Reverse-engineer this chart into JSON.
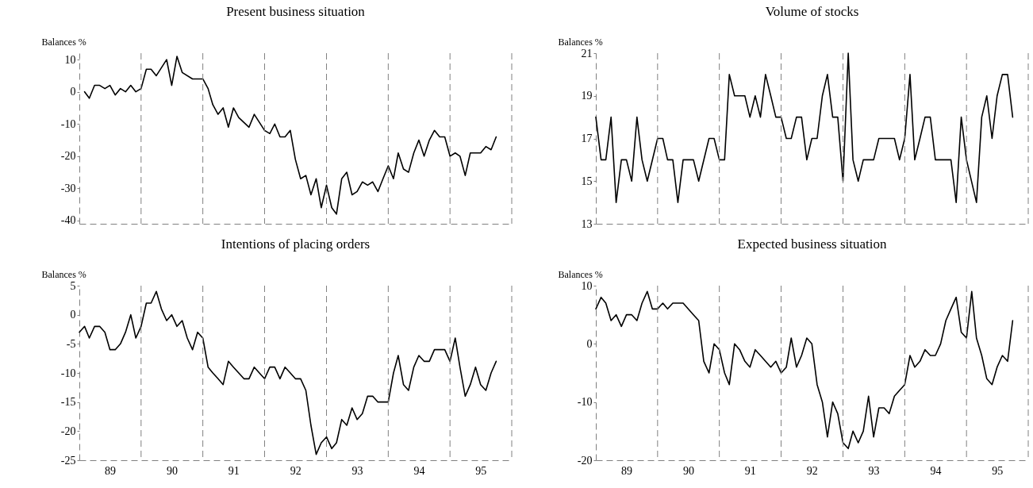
{
  "chart_data": [
    {
      "type": "line",
      "title": "Present business situation",
      "ylabel": "Balances %",
      "tick_labels": "y",
      "xlim": [
        "1989-01",
        "1996-01"
      ],
      "xticks": [
        {
          "value": "1989-07",
          "label": null
        },
        {
          "value": "1990-07",
          "label": null
        },
        {
          "value": "1991-07",
          "label": null
        },
        {
          "value": "1992-07",
          "label": null
        },
        {
          "value": "1993-07",
          "label": null
        },
        {
          "value": "1994-07",
          "label": null
        },
        {
          "value": "1995-07",
          "label": null
        }
      ],
      "ylim": [
        -41,
        12
      ],
      "yticks": [
        -40,
        -30,
        -20,
        -10,
        0,
        10
      ],
      "marker": "none",
      "line_style": "solid",
      "series": [
        {
          "color": "#000000",
          "x": [
            "1989-02",
            "1989-03",
            "1989-04",
            "1989-05",
            "1989-06",
            "1989-07",
            "1989-08",
            "1989-09",
            "1989-10",
            "1989-11",
            "1989-12",
            "1990-01",
            "1990-02",
            "1990-03",
            "1990-04",
            "1990-06",
            "1990-07",
            "1990-08",
            "1990-09",
            "1990-11",
            "1991-01",
            "1991-02",
            "1991-03",
            "1991-04",
            "1991-05",
            "1991-06",
            "1991-07",
            "1991-08",
            "1991-10",
            "1991-11",
            "1992-01",
            "1992-02",
            "1992-03",
            "1992-04",
            "1992-05",
            "1992-06",
            "1992-07",
            "1992-08",
            "1992-09",
            "1992-10",
            "1992-11",
            "1992-12",
            "1993-01",
            "1993-02",
            "1993-03",
            "1993-04",
            "1993-05",
            "1993-06",
            "1993-07",
            "1993-08",
            "1993-09",
            "1993-10",
            "1993-11",
            "1993-12",
            "1994-01",
            "1994-02",
            "1994-03",
            "1994-04",
            "1994-05",
            "1994-06",
            "1994-07",
            "1994-08",
            "1994-09",
            "1994-10",
            "1994-11",
            "1994-12",
            "1995-01",
            "1995-02",
            "1995-03",
            "1995-04",
            "1995-05",
            "1995-06",
            "1995-07",
            "1995-08",
            "1995-09",
            "1995-10"
          ],
          "values": [
            0,
            -2,
            2,
            2,
            1,
            2,
            -1,
            1,
            0,
            2,
            0,
            1,
            7,
            7,
            5,
            10,
            2,
            11,
            6,
            4,
            4,
            1,
            -4,
            -7,
            -5,
            -11,
            -5,
            -8,
            -11,
            -7,
            -12,
            -13,
            -10,
            -14,
            -14,
            -12,
            -21,
            -27,
            -26,
            -32,
            -27,
            -36,
            -29,
            -36,
            -38,
            -27,
            -25,
            -32,
            -31,
            -28,
            -29,
            -28,
            -31,
            -27,
            -23,
            -27,
            -19,
            -24,
            -25,
            -19,
            -15,
            -20,
            -15,
            -12,
            -14,
            -14,
            -20,
            -19,
            -20,
            -26,
            -19,
            -19,
            -19,
            -17,
            -18,
            -14
          ]
        }
      ],
      "ref_lines": [
        {
          "axis": "x",
          "value": "1990-01",
          "line_style": "dashed",
          "color": "#808080"
        },
        {
          "axis": "x",
          "value": "1991-01",
          "line_style": "dashed",
          "color": "#808080"
        },
        {
          "axis": "x",
          "value": "1992-01",
          "line_style": "dashed",
          "color": "#808080"
        },
        {
          "axis": "x",
          "value": "1993-01",
          "line_style": "dashed",
          "color": "#808080"
        },
        {
          "axis": "x",
          "value": "1994-01",
          "line_style": "dashed",
          "color": "#808080"
        },
        {
          "axis": "x",
          "value": "1995-01",
          "line_style": "dashed",
          "color": "#808080"
        },
        {
          "axis": "x",
          "value": "1996-01",
          "line_style": "dashed",
          "color": "#808080"
        }
      ]
    },
    {
      "type": "line",
      "title": "Volume of stocks",
      "ylabel": "Balances %",
      "tick_labels": "y",
      "xlim": [
        "1989-01",
        "1996-01"
      ],
      "xticks": [
        {
          "value": "1989-07",
          "label": null
        },
        {
          "value": "1990-07",
          "label": null
        },
        {
          "value": "1991-07",
          "label": null
        },
        {
          "value": "1992-07",
          "label": null
        },
        {
          "value": "1993-07",
          "label": null
        },
        {
          "value": "1994-07",
          "label": null
        },
        {
          "value": "1995-07",
          "label": null
        }
      ],
      "ylim": [
        13,
        21
      ],
      "yticks": [
        13,
        15,
        17,
        19,
        21
      ],
      "marker": "none",
      "line_style": "solid",
      "series": [
        {
          "color": "#000000",
          "x": [
            "1989-01",
            "1989-02",
            "1989-03",
            "1989-04",
            "1989-05",
            "1989-06",
            "1989-07",
            "1989-08",
            "1989-09",
            "1989-10",
            "1989-11",
            "1990-01",
            "1990-02",
            "1990-03",
            "1990-04",
            "1990-05",
            "1990-06",
            "1990-08",
            "1990-09",
            "1990-11",
            "1990-12",
            "1991-01",
            "1991-02",
            "1991-03",
            "1991-04",
            "1991-06",
            "1991-07",
            "1991-08",
            "1991-09",
            "1991-10",
            "1991-11",
            "1991-12",
            "1992-01",
            "1992-02",
            "1992-03",
            "1992-04",
            "1992-05",
            "1992-06",
            "1992-07",
            "1992-08",
            "1992-09",
            "1992-10",
            "1992-11",
            "1992-12",
            "1993-01",
            "1993-02",
            "1993-03",
            "1993-04",
            "1993-05",
            "1993-07",
            "1993-08",
            "1993-11",
            "1993-12",
            "1994-01",
            "1994-02",
            "1994-03",
            "1994-04",
            "1994-05",
            "1994-06",
            "1994-07",
            "1994-10",
            "1994-11",
            "1994-12",
            "1995-01",
            "1995-03",
            "1995-04",
            "1995-05",
            "1995-06",
            "1995-07",
            "1995-08",
            "1995-09",
            "1995-10"
          ],
          "values": [
            18,
            16,
            16,
            18,
            14,
            16,
            16,
            15,
            18,
            16,
            15,
            17,
            17,
            16,
            16,
            14,
            16,
            16,
            15,
            17,
            17,
            16,
            16,
            20,
            19,
            19,
            18,
            19,
            18,
            20,
            19,
            18,
            18,
            17,
            17,
            18,
            18,
            16,
            17,
            17,
            19,
            20,
            18,
            18,
            15,
            21,
            16,
            15,
            16,
            16,
            17,
            17,
            16,
            17,
            20,
            16,
            17,
            18,
            18,
            16,
            16,
            14,
            18,
            16,
            14,
            18,
            19,
            17,
            19,
            20,
            20,
            18
          ]
        }
      ],
      "ref_lines": [
        {
          "axis": "x",
          "value": "1990-01",
          "line_style": "dashed",
          "color": "#808080"
        },
        {
          "axis": "x",
          "value": "1991-01",
          "line_style": "dashed",
          "color": "#808080"
        },
        {
          "axis": "x",
          "value": "1992-01",
          "line_style": "dashed",
          "color": "#808080"
        },
        {
          "axis": "x",
          "value": "1993-01",
          "line_style": "dashed",
          "color": "#808080"
        },
        {
          "axis": "x",
          "value": "1994-01",
          "line_style": "dashed",
          "color": "#808080"
        },
        {
          "axis": "x",
          "value": "1995-01",
          "line_style": "dashed",
          "color": "#808080"
        },
        {
          "axis": "x",
          "value": "1996-01",
          "line_style": "dashed",
          "color": "#808080"
        }
      ]
    },
    {
      "type": "line",
      "title": "Intentions of placing orders",
      "ylabel": "Balances %",
      "xlim": [
        "1989-01",
        "1996-01"
      ],
      "xticks": [
        {
          "value": "1989-07",
          "label": "89"
        },
        {
          "value": "1990-07",
          "label": "90"
        },
        {
          "value": "1991-07",
          "label": "91"
        },
        {
          "value": "1992-07",
          "label": "92"
        },
        {
          "value": "1993-07",
          "label": "93"
        },
        {
          "value": "1994-07",
          "label": "94"
        },
        {
          "value": "1995-07",
          "label": "95"
        }
      ],
      "ylim": [
        -25,
        5
      ],
      "yticks": [
        -25,
        -20,
        -15,
        -10,
        -5,
        0,
        5
      ],
      "marker": "none",
      "line_style": "solid",
      "series": [
        {
          "color": "#000000",
          "x": [
            "1989-01",
            "1989-02",
            "1989-03",
            "1989-04",
            "1989-05",
            "1989-06",
            "1989-07",
            "1989-08",
            "1989-09",
            "1989-10",
            "1989-11",
            "1989-12",
            "1990-01",
            "1990-02",
            "1990-03",
            "1990-04",
            "1990-05",
            "1990-06",
            "1990-07",
            "1990-08",
            "1990-09",
            "1990-10",
            "1990-11",
            "1990-12",
            "1991-01",
            "1991-02",
            "1991-03",
            "1991-04",
            "1991-05",
            "1991-06",
            "1991-07",
            "1991-08",
            "1991-09",
            "1991-10",
            "1991-11",
            "1991-12",
            "1992-01",
            "1992-02",
            "1992-03",
            "1992-04",
            "1992-05",
            "1992-06",
            "1992-07",
            "1992-08",
            "1992-09",
            "1992-10",
            "1992-11",
            "1992-12",
            "1993-01",
            "1993-02",
            "1993-03",
            "1993-04",
            "1993-05",
            "1993-06",
            "1993-07",
            "1993-08",
            "1993-09",
            "1993-10",
            "1993-11",
            "1994-01",
            "1994-02",
            "1994-03",
            "1994-04",
            "1994-05",
            "1994-06",
            "1994-07",
            "1994-08",
            "1994-09",
            "1994-10",
            "1994-12",
            "1995-01",
            "1995-02",
            "1995-03",
            "1995-04",
            "1995-05",
            "1995-06",
            "1995-07",
            "1995-08",
            "1995-09",
            "1995-10"
          ],
          "values": [
            -3,
            -2,
            -4,
            -2,
            -2,
            -3,
            -6,
            -6,
            -5,
            -3,
            0,
            -4,
            -2,
            2,
            2,
            4,
            1,
            -1,
            0,
            -2,
            -1,
            -4,
            -6,
            -3,
            -4,
            -9,
            -10,
            -11,
            -12,
            -8,
            -9,
            -10,
            -11,
            -11,
            -9,
            -10,
            -11,
            -9,
            -9,
            -11,
            -9,
            -10,
            -11,
            -11,
            -13,
            -19,
            -24,
            -22,
            -21,
            -23,
            -22,
            -18,
            -19,
            -16,
            -18,
            -17,
            -14,
            -14,
            -15,
            -15,
            -10,
            -7,
            -12,
            -13,
            -9,
            -7,
            -8,
            -8,
            -6,
            -6,
            -8,
            -4,
            -9,
            -14,
            -12,
            -9,
            -12,
            -13,
            -10,
            -8
          ]
        }
      ],
      "ref_lines": [
        {
          "axis": "x",
          "value": "1990-01",
          "line_style": "dashed",
          "color": "#808080"
        },
        {
          "axis": "x",
          "value": "1991-01",
          "line_style": "dashed",
          "color": "#808080"
        },
        {
          "axis": "x",
          "value": "1992-01",
          "line_style": "dashed",
          "color": "#808080"
        },
        {
          "axis": "x",
          "value": "1993-01",
          "line_style": "dashed",
          "color": "#808080"
        },
        {
          "axis": "x",
          "value": "1994-01",
          "line_style": "dashed",
          "color": "#808080"
        },
        {
          "axis": "x",
          "value": "1995-01",
          "line_style": "dashed",
          "color": "#808080"
        },
        {
          "axis": "x",
          "value": "1996-01",
          "line_style": "dashed",
          "color": "#808080"
        }
      ]
    },
    {
      "type": "line",
      "title": "Expected business situation",
      "ylabel": "Balances %",
      "xlim": [
        "1989-01",
        "1996-01"
      ],
      "xticks": [
        {
          "value": "1989-07",
          "label": "89"
        },
        {
          "value": "1990-07",
          "label": "90"
        },
        {
          "value": "1991-07",
          "label": "91"
        },
        {
          "value": "1992-07",
          "label": "92"
        },
        {
          "value": "1993-07",
          "label": "93"
        },
        {
          "value": "1994-07",
          "label": "94"
        },
        {
          "value": "1995-07",
          "label": "95"
        }
      ],
      "ylim": [
        -20,
        10
      ],
      "yticks": [
        -20,
        -10,
        0,
        10
      ],
      "marker": "none",
      "line_style": "solid",
      "series": [
        {
          "color": "#000000",
          "x": [
            "1989-01",
            "1989-02",
            "1989-03",
            "1989-04",
            "1989-05",
            "1989-06",
            "1989-07",
            "1989-08",
            "1989-09",
            "1989-10",
            "1989-11",
            "1989-12",
            "1990-01",
            "1990-02",
            "1990-03",
            "1990-04",
            "1990-06",
            "1990-07",
            "1990-08",
            "1990-09",
            "1990-10",
            "1990-11",
            "1990-12",
            "1991-01",
            "1991-02",
            "1991-03",
            "1991-04",
            "1991-05",
            "1991-06",
            "1991-07",
            "1991-08",
            "1991-09",
            "1991-10",
            "1991-11",
            "1991-12",
            "1992-01",
            "1992-02",
            "1992-03",
            "1992-04",
            "1992-05",
            "1992-06",
            "1992-07",
            "1992-08",
            "1992-09",
            "1992-10",
            "1992-11",
            "1992-12",
            "1993-01",
            "1993-02",
            "1993-03",
            "1993-04",
            "1993-05",
            "1993-06",
            "1993-07",
            "1993-08",
            "1993-09",
            "1993-10",
            "1993-11",
            "1993-12",
            "1994-01",
            "1994-02",
            "1994-03",
            "1994-04",
            "1994-05",
            "1994-06",
            "1994-07",
            "1994-08",
            "1994-09",
            "1994-10",
            "1994-11",
            "1994-12",
            "1995-01",
            "1995-02",
            "1995-03",
            "1995-04",
            "1995-05",
            "1995-06",
            "1995-07",
            "1995-08",
            "1995-09",
            "1995-10"
          ],
          "values": [
            6,
            8,
            7,
            4,
            5,
            3,
            5,
            5,
            4,
            7,
            9,
            6,
            6,
            7,
            6,
            7,
            7,
            6,
            5,
            4,
            -3,
            -5,
            0,
            -1,
            -5,
            -7,
            0,
            -1,
            -3,
            -4,
            -1,
            -2,
            -3,
            -4,
            -3,
            -5,
            -4,
            1,
            -4,
            -2,
            1,
            0,
            -7,
            -10,
            -16,
            -10,
            -12,
            -17,
            -18,
            -15,
            -17,
            -15,
            -9,
            -16,
            -11,
            -11,
            -12,
            -9,
            -8,
            -7,
            -2,
            -4,
            -3,
            -1,
            -2,
            -2,
            0,
            4,
            6,
            8,
            2,
            1,
            9,
            1,
            -2,
            -6,
            -7,
            -4,
            -2,
            -3,
            4
          ]
        }
      ],
      "ref_lines": [
        {
          "axis": "x",
          "value": "1990-01",
          "line_style": "dashed",
          "color": "#808080"
        },
        {
          "axis": "x",
          "value": "1991-01",
          "line_style": "dashed",
          "color": "#808080"
        },
        {
          "axis": "x",
          "value": "1992-01",
          "line_style": "dashed",
          "color": "#808080"
        },
        {
          "axis": "x",
          "value": "1993-01",
          "line_style": "dashed",
          "color": "#808080"
        },
        {
          "axis": "x",
          "value": "1994-01",
          "line_style": "dashed",
          "color": "#808080"
        },
        {
          "axis": "x",
          "value": "1995-01",
          "line_style": "dashed",
          "color": "#808080"
        },
        {
          "axis": "x",
          "value": "1996-01",
          "line_style": "dashed",
          "color": "#808080"
        }
      ]
    }
  ]
}
